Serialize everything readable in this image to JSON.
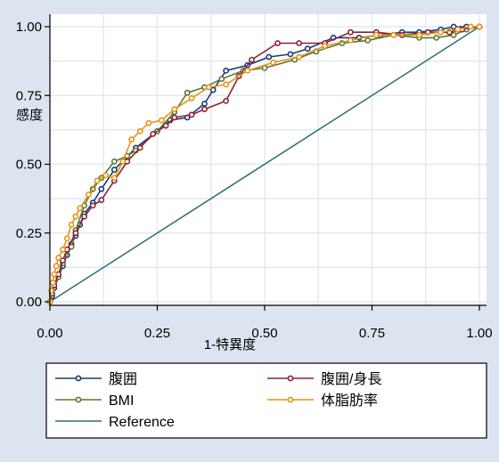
{
  "colors": {
    "background": "#dce5ef",
    "plot_background": "#ffffff",
    "grid": "#e3e8f2"
  },
  "chart_data": {
    "type": "line",
    "xlabel": "1-特異度",
    "ylabel": "感度",
    "xlim": [
      0,
      1
    ],
    "ylim": [
      0,
      1
    ],
    "x_ticks": [
      0,
      0.25,
      0.5,
      0.75,
      1
    ],
    "x_tick_labels": [
      "0.00",
      "0.25",
      "0.50",
      "0.75",
      "1.00"
    ],
    "y_ticks": [
      0,
      0.25,
      0.5,
      0.75,
      1
    ],
    "y_tick_labels": [
      "0.00",
      "0.25",
      "0.50",
      "0.75",
      "1.00"
    ],
    "grid": true,
    "legend_position": "bottom",
    "series": [
      {
        "name": "腹囲",
        "color": "#1a3a7a",
        "marker": true,
        "x": [
          0,
          0.005,
          0.01,
          0.02,
          0.03,
          0.04,
          0.05,
          0.06,
          0.07,
          0.08,
          0.1,
          0.12,
          0.15,
          0.2,
          0.25,
          0.28,
          0.32,
          0.36,
          0.38,
          0.41,
          0.46,
          0.51,
          0.56,
          0.6,
          0.66,
          0.72,
          0.77,
          0.82,
          0.86,
          0.91,
          0.94,
          0.97,
          1.0
        ],
        "y": [
          0,
          0.02,
          0.05,
          0.09,
          0.13,
          0.17,
          0.21,
          0.24,
          0.28,
          0.32,
          0.36,
          0.41,
          0.48,
          0.56,
          0.62,
          0.66,
          0.67,
          0.72,
          0.77,
          0.84,
          0.86,
          0.89,
          0.9,
          0.92,
          0.96,
          0.96,
          0.97,
          0.98,
          0.98,
          0.99,
          1.0,
          1.0,
          1.0
        ]
      },
      {
        "name": "腹囲/身長",
        "color": "#8c2434",
        "marker": true,
        "x": [
          0,
          0.005,
          0.01,
          0.02,
          0.03,
          0.04,
          0.06,
          0.08,
          0.1,
          0.12,
          0.15,
          0.18,
          0.21,
          0.24,
          0.27,
          0.29,
          0.33,
          0.36,
          0.41,
          0.44,
          0.47,
          0.53,
          0.58,
          0.64,
          0.7,
          0.76,
          0.82,
          0.88,
          0.93,
          0.96,
          1.0
        ],
        "y": [
          0,
          0.03,
          0.06,
          0.1,
          0.15,
          0.19,
          0.25,
          0.31,
          0.35,
          0.37,
          0.44,
          0.51,
          0.56,
          0.61,
          0.64,
          0.67,
          0.68,
          0.7,
          0.73,
          0.82,
          0.88,
          0.94,
          0.94,
          0.94,
          0.98,
          0.98,
          0.97,
          0.98,
          0.98,
          0.99,
          1.0
        ]
      },
      {
        "name": "BMI",
        "color": "#577a30",
        "marker": true,
        "x": [
          0,
          0.005,
          0.01,
          0.02,
          0.03,
          0.05,
          0.06,
          0.08,
          0.1,
          0.12,
          0.15,
          0.18,
          0.2,
          0.25,
          0.29,
          0.32,
          0.36,
          0.4,
          0.45,
          0.5,
          0.57,
          0.62,
          0.68,
          0.74,
          0.8,
          0.86,
          0.9,
          0.94,
          0.97,
          1.0
        ],
        "y": [
          0,
          0.03,
          0.06,
          0.09,
          0.14,
          0.2,
          0.26,
          0.35,
          0.41,
          0.45,
          0.51,
          0.53,
          0.55,
          0.62,
          0.69,
          0.76,
          0.78,
          0.81,
          0.84,
          0.85,
          0.88,
          0.91,
          0.94,
          0.95,
          0.97,
          0.96,
          0.96,
          0.97,
          0.99,
          1.0
        ]
      },
      {
        "name": "体脂肪率",
        "color": "#e89313",
        "marker": true,
        "x": [
          0,
          0.003,
          0.007,
          0.01,
          0.015,
          0.02,
          0.03,
          0.04,
          0.05,
          0.06,
          0.07,
          0.09,
          0.11,
          0.13,
          0.15,
          0.17,
          0.19,
          0.21,
          0.23,
          0.26,
          0.29,
          0.33,
          0.37,
          0.41,
          0.46,
          0.52,
          0.58,
          0.64,
          0.7,
          0.76,
          0.8,
          0.86,
          0.91,
          0.95,
          0.98,
          1.0
        ],
        "y": [
          0,
          0.04,
          0.07,
          0.1,
          0.13,
          0.16,
          0.19,
          0.23,
          0.28,
          0.31,
          0.34,
          0.39,
          0.44,
          0.46,
          0.45,
          0.51,
          0.59,
          0.62,
          0.65,
          0.66,
          0.7,
          0.74,
          0.78,
          0.79,
          0.84,
          0.87,
          0.89,
          0.93,
          0.95,
          0.97,
          0.97,
          0.97,
          0.98,
          0.99,
          1.0,
          1.0
        ]
      },
      {
        "name": "Reference",
        "color": "#2e6e6a",
        "marker": false,
        "x": [
          0,
          1
        ],
        "y": [
          0,
          1
        ]
      }
    ]
  }
}
